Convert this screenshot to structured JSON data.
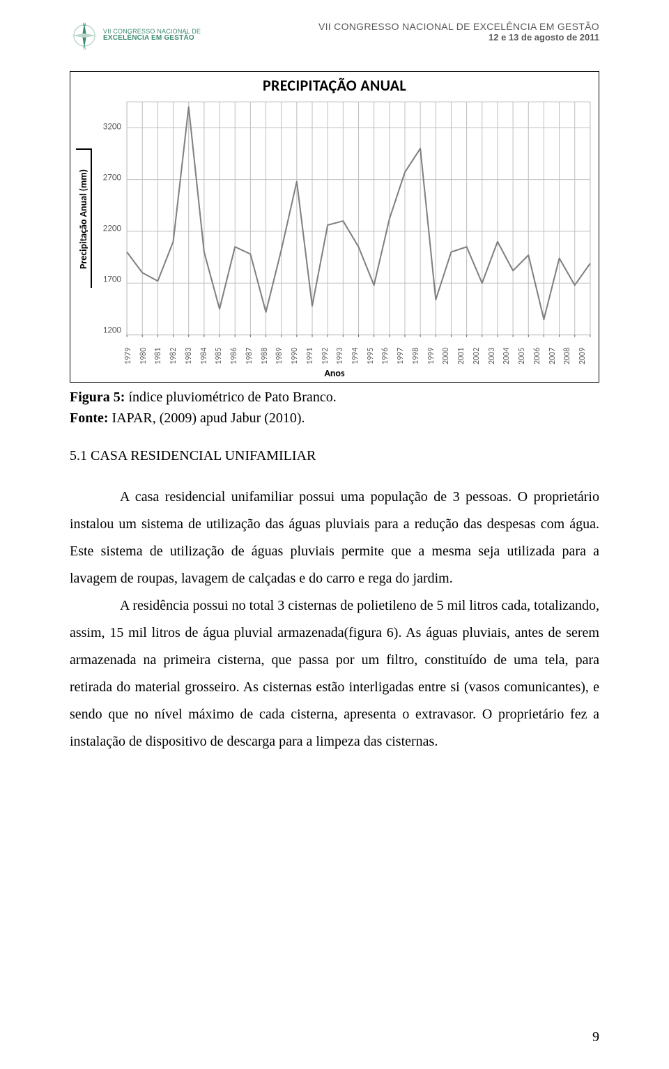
{
  "header": {
    "logo_line1": "VII CONGRESSO NACIONAL DE",
    "logo_line2": "EXCELÊNCIA EM GESTÃO",
    "title_line1": "VII CONGRESSO NACIONAL DE EXCELÊNCIA EM GESTÃO",
    "title_line2": "12 e 13 de agosto de 2011",
    "logo_color": "#3c8a6e"
  },
  "chart": {
    "type": "line",
    "title": "PRECIPITAÇÃO ANUAL",
    "title_fontsize": 22,
    "y_label": "Precipitação Anual (mm)",
    "x_label": "Anos",
    "ylim": [
      1200,
      3450
    ],
    "ytick_values": [
      1200,
      1700,
      2200,
      2700,
      3200
    ],
    "grid_color": "#bfbfbf",
    "line_color": "#808080",
    "line_width": 2,
    "background_color": "#ffffff",
    "plot_border_color": "#bfbfbf",
    "tick_label_color": "#595959",
    "tick_fontsize": 13,
    "label_fontsize": 14,
    "years": [
      1979,
      1980,
      1981,
      1982,
      1983,
      1984,
      1985,
      1986,
      1987,
      1988,
      1989,
      1990,
      1991,
      1992,
      1993,
      1994,
      1995,
      1996,
      1997,
      1998,
      1999,
      2000,
      2001,
      2002,
      2003,
      2004,
      2005,
      2006,
      2007,
      2008,
      2009
    ],
    "values": [
      2000,
      1800,
      1720,
      2100,
      3400,
      2000,
      1450,
      2050,
      1980,
      1420,
      2020,
      2680,
      1480,
      2260,
      2300,
      2050,
      1680,
      2320,
      2770,
      3000,
      1540,
      2000,
      2050,
      1700,
      2100,
      1820,
      1970,
      1350,
      1940,
      1680,
      1890
    ]
  },
  "caption": {
    "bold": "Figura 5:",
    "rest": " índice pluviométrico de Pato Branco.",
    "source_bold": "Fonte:",
    "source_rest": " IAPAR, (2009) apud Jabur (2010)."
  },
  "section": {
    "number": "5.1",
    "title": " CASA RESIDENCIAL UNIFAMILIAR"
  },
  "body": {
    "p1": "A casa residencial unifamiliar possui uma população de 3 pessoas. O proprietário instalou um sistema de utilização das águas pluviais para a redução das despesas com água. Este sistema de utilização de águas pluviais permite que a mesma seja utilizada para a lavagem de roupas, lavagem de calçadas e do carro e rega do jardim.",
    "p2": "A residência possui no total 3 cisternas de polietileno de 5 mil litros cada, totalizando, assim, 15 mil litros de água pluvial armazenada(figura 6). As águas pluviais, antes de serem armazenada na primeira cisterna, que passa por um filtro, constituído de uma tela, para retirada do material grosseiro. As cisternas estão interligadas entre si (vasos comunicantes), e sendo que no nível máximo de cada cisterna, apresenta o extravasor. O proprietário fez a instalação de dispositivo de descarga para a limpeza das cisternas."
  },
  "page_number": "9"
}
